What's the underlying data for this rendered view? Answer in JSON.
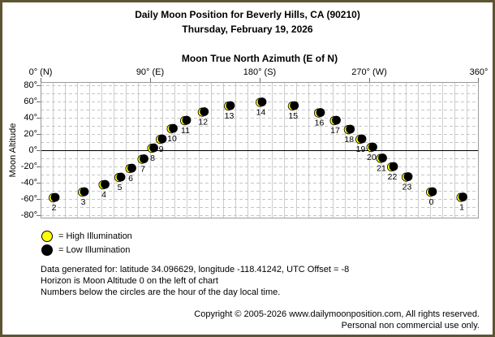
{
  "frame": {
    "border_color": "#5e5433",
    "background": "#ffffff"
  },
  "title": {
    "line1": "Daily Moon Position for Beverly Hills, CA (90210)",
    "line2": "Thursday, February 19, 2026"
  },
  "chart_data": {
    "type": "scatter",
    "xlabel": "Moon True North Azimuth (E of N)",
    "ylabel": "Moon Altitude",
    "xlim": [
      0,
      360
    ],
    "ylim": [
      -84,
      84
    ],
    "grid": {
      "x_step_deg": 10,
      "y_step_deg": 10,
      "horizontal_style": "dashed",
      "vertical_style": "solid"
    },
    "horizon_altitude": 0,
    "x_ticks": [
      {
        "value": 0,
        "label": "0° (N)"
      },
      {
        "value": 90,
        "label": "90° (E)"
      },
      {
        "value": 180,
        "label": "180° (S)"
      },
      {
        "value": 270,
        "label": "270° (W)"
      },
      {
        "value": 360,
        "label": "360°"
      }
    ],
    "y_ticks": [
      {
        "value": 80,
        "label": "80°"
      },
      {
        "value": 60,
        "label": "60°"
      },
      {
        "value": 40,
        "label": "40°"
      },
      {
        "value": 20,
        "label": "20°"
      },
      {
        "value": 0,
        "label": "0°"
      },
      {
        "value": -20,
        "label": "-20°"
      },
      {
        "value": -40,
        "label": "-40°"
      },
      {
        "value": -60,
        "label": "-60°"
      },
      {
        "value": -80,
        "label": "-80°"
      }
    ],
    "marker": {
      "high_illumination_color": "#ffff00",
      "low_illumination_color": "#000000",
      "crescent_color": "#ffff00"
    },
    "series": [
      {
        "name": "Hourly moon position (hour of day local time)",
        "points": [
          {
            "hour": 2,
            "azimuth": 12,
            "altitude": -58,
            "illumination": "low"
          },
          {
            "hour": 3,
            "azimuth": 36,
            "altitude": -51,
            "illumination": "low"
          },
          {
            "hour": 4,
            "azimuth": 53,
            "altitude": -42,
            "illumination": "low"
          },
          {
            "hour": 5,
            "azimuth": 66,
            "altitude": -33,
            "illumination": "low"
          },
          {
            "hour": 6,
            "azimuth": 75,
            "altitude": -22,
            "illumination": "low"
          },
          {
            "hour": 7,
            "azimuth": 85,
            "altitude": -10.5,
            "illumination": "low"
          },
          {
            "hour": 8,
            "azimuth": 93,
            "altitude": 3,
            "illumination": "low"
          },
          {
            "hour": 9,
            "azimuth": 100,
            "altitude": 14,
            "illumination": "low"
          },
          {
            "hour": 10,
            "azimuth": 109,
            "altitude": 27,
            "illumination": "low"
          },
          {
            "hour": 11,
            "azimuth": 120,
            "altitude": 37,
            "illumination": "low"
          },
          {
            "hour": 12,
            "azimuth": 134.5,
            "altitude": 47.5,
            "illumination": "low"
          },
          {
            "hour": 13,
            "azimuth": 156,
            "altitude": 55,
            "illumination": "low"
          },
          {
            "hour": 14,
            "azimuth": 182,
            "altitude": 59.5,
            "illumination": "low"
          },
          {
            "hour": 15,
            "azimuth": 208.5,
            "altitude": 55,
            "illumination": "low"
          },
          {
            "hour": 16,
            "azimuth": 230,
            "altitude": 46.5,
            "illumination": "low"
          },
          {
            "hour": 17,
            "azimuth": 243,
            "altitude": 37,
            "illumination": "low"
          },
          {
            "hour": 18,
            "azimuth": 254.5,
            "altitude": 26,
            "illumination": "low"
          },
          {
            "hour": 19,
            "azimuth": 264,
            "altitude": 14,
            "illumination": "low"
          },
          {
            "hour": 20,
            "azimuth": 273,
            "altitude": 4,
            "illumination": "low"
          },
          {
            "hour": 21,
            "azimuth": 281,
            "altitude": -9.5,
            "illumination": "low"
          },
          {
            "hour": 22,
            "azimuth": 290,
            "altitude": -20,
            "illumination": "low"
          },
          {
            "hour": 23,
            "azimuth": 302,
            "altitude": -32.5,
            "illumination": "low"
          },
          {
            "hour": 0,
            "azimuth": 322,
            "altitude": -51,
            "illumination": "low"
          },
          {
            "hour": 1,
            "azimuth": 347,
            "altitude": -57.5,
            "illumination": "low"
          }
        ]
      }
    ]
  },
  "legend": [
    {
      "key": "high",
      "color": "#ffff00",
      "label": "= High Illumination"
    },
    {
      "key": "low",
      "color": "#000000",
      "label": "= Low Illumination"
    }
  ],
  "notes": [
    "Data generated for: latitude 34.096629, longitude -118.41242, UTC Offset = -8",
    "Horizon is Moon Altitude 0 on the left of chart",
    "Numbers below the circles are the hour of the day local time."
  ],
  "footer": [
    "Copyright © 2005-2026 www.dailymoonposition.com, All rights reserved.",
    "Personal non commercial use only."
  ]
}
